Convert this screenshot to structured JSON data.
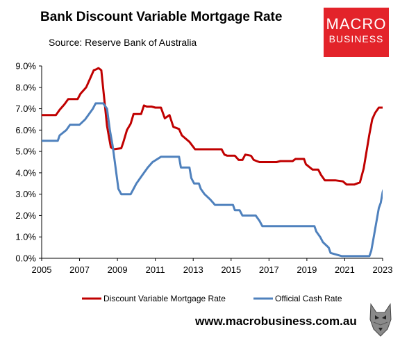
{
  "header": {
    "title": "Bank Discount Variable Mortgage Rate",
    "subtitle": "Source: Reserve Bank of Australia"
  },
  "logo": {
    "line1": "MACRO",
    "line2": "BUSINESS",
    "color": "#e3232a"
  },
  "footer": {
    "url": "www.macrobusiness.com.au",
    "icon": "wolf-icon"
  },
  "chart_data": {
    "type": "line",
    "title": "Bank Discount Variable Mortgage Rate",
    "xlim": [
      2005,
      2023
    ],
    "ylim": [
      0,
      9
    ],
    "x_ticks": [
      "2005",
      "2007",
      "2009",
      "2011",
      "2013",
      "2015",
      "2017",
      "2019",
      "2021",
      "2023"
    ],
    "x_tick_values": [
      2005,
      2007,
      2009,
      2011,
      2013,
      2015,
      2017,
      2019,
      2021,
      2023
    ],
    "y_ticks": [
      "0.0%",
      "1.0%",
      "2.0%",
      "3.0%",
      "4.0%",
      "5.0%",
      "6.0%",
      "7.0%",
      "8.0%",
      "9.0%"
    ],
    "y_tick_values": [
      0,
      1,
      2,
      3,
      4,
      5,
      6,
      7,
      8,
      9
    ],
    "grid": false,
    "legend": "bottom",
    "series": [
      {
        "name": "Discount Variable Mortgage Rate",
        "color": "#c00000",
        "points": [
          [
            2005.0,
            6.7
          ],
          [
            2005.75,
            6.7
          ],
          [
            2005.95,
            6.95
          ],
          [
            2006.2,
            7.2
          ],
          [
            2006.4,
            7.45
          ],
          [
            2006.9,
            7.45
          ],
          [
            2007.05,
            7.7
          ],
          [
            2007.35,
            8.0
          ],
          [
            2007.55,
            8.4
          ],
          [
            2007.75,
            8.8
          ],
          [
            2007.9,
            8.85
          ],
          [
            2008.0,
            8.9
          ],
          [
            2008.15,
            8.8
          ],
          [
            2008.3,
            7.5
          ],
          [
            2008.45,
            6.2
          ],
          [
            2008.55,
            5.7
          ],
          [
            2008.65,
            5.2
          ],
          [
            2008.8,
            5.1
          ],
          [
            2009.2,
            5.15
          ],
          [
            2009.3,
            5.4
          ],
          [
            2009.5,
            6.0
          ],
          [
            2009.7,
            6.3
          ],
          [
            2009.85,
            6.75
          ],
          [
            2010.25,
            6.75
          ],
          [
            2010.4,
            7.15
          ],
          [
            2010.55,
            7.1
          ],
          [
            2010.8,
            7.1
          ],
          [
            2011.0,
            7.05
          ],
          [
            2011.3,
            7.05
          ],
          [
            2011.5,
            6.55
          ],
          [
            2011.75,
            6.7
          ],
          [
            2011.95,
            6.15
          ],
          [
            2012.25,
            6.05
          ],
          [
            2012.4,
            5.75
          ],
          [
            2012.6,
            5.6
          ],
          [
            2012.8,
            5.45
          ],
          [
            2013.1,
            5.1
          ],
          [
            2014.5,
            5.1
          ],
          [
            2014.65,
            4.85
          ],
          [
            2014.8,
            4.8
          ],
          [
            2015.2,
            4.8
          ],
          [
            2015.4,
            4.6
          ],
          [
            2015.6,
            4.6
          ],
          [
            2015.75,
            4.85
          ],
          [
            2016.05,
            4.8
          ],
          [
            2016.2,
            4.6
          ],
          [
            2016.5,
            4.5
          ],
          [
            2017.4,
            4.5
          ],
          [
            2017.6,
            4.55
          ],
          [
            2018.25,
            4.55
          ],
          [
            2018.4,
            4.65
          ],
          [
            2018.85,
            4.65
          ],
          [
            2018.95,
            4.4
          ],
          [
            2019.3,
            4.15
          ],
          [
            2019.6,
            4.15
          ],
          [
            2019.75,
            3.9
          ],
          [
            2019.95,
            3.65
          ],
          [
            2020.5,
            3.65
          ],
          [
            2020.9,
            3.6
          ],
          [
            2021.1,
            3.45
          ],
          [
            2021.5,
            3.45
          ],
          [
            2021.8,
            3.55
          ],
          [
            2022.0,
            4.2
          ],
          [
            2022.15,
            5.0
          ],
          [
            2022.3,
            5.8
          ],
          [
            2022.45,
            6.5
          ],
          [
            2022.6,
            6.8
          ],
          [
            2022.8,
            7.05
          ],
          [
            2023.0,
            7.05
          ]
        ]
      },
      {
        "name": "Official Cash Rate",
        "color": "#4f81bd",
        "points": [
          [
            2005.0,
            5.5
          ],
          [
            2005.85,
            5.5
          ],
          [
            2005.95,
            5.75
          ],
          [
            2006.3,
            6.0
          ],
          [
            2006.5,
            6.25
          ],
          [
            2007.0,
            6.25
          ],
          [
            2007.3,
            6.5
          ],
          [
            2007.5,
            6.75
          ],
          [
            2007.7,
            7.0
          ],
          [
            2007.85,
            7.25
          ],
          [
            2008.25,
            7.25
          ],
          [
            2008.45,
            7.0
          ],
          [
            2008.6,
            6.0
          ],
          [
            2008.75,
            5.25
          ],
          [
            2008.9,
            4.25
          ],
          [
            2009.05,
            3.25
          ],
          [
            2009.2,
            3.0
          ],
          [
            2009.7,
            3.0
          ],
          [
            2009.85,
            3.25
          ],
          [
            2010.0,
            3.5
          ],
          [
            2010.2,
            3.75
          ],
          [
            2010.4,
            4.0
          ],
          [
            2010.6,
            4.25
          ],
          [
            2010.85,
            4.5
          ],
          [
            2011.3,
            4.75
          ],
          [
            2012.25,
            4.75
          ],
          [
            2012.35,
            4.25
          ],
          [
            2012.8,
            4.25
          ],
          [
            2012.9,
            3.75
          ],
          [
            2013.05,
            3.5
          ],
          [
            2013.3,
            3.5
          ],
          [
            2013.4,
            3.25
          ],
          [
            2013.6,
            3.0
          ],
          [
            2013.9,
            2.75
          ],
          [
            2014.15,
            2.5
          ],
          [
            2015.1,
            2.5
          ],
          [
            2015.2,
            2.25
          ],
          [
            2015.45,
            2.25
          ],
          [
            2015.6,
            2.0
          ],
          [
            2016.3,
            2.0
          ],
          [
            2016.5,
            1.75
          ],
          [
            2016.65,
            1.5
          ],
          [
            2019.4,
            1.5
          ],
          [
            2019.5,
            1.25
          ],
          [
            2019.7,
            1.0
          ],
          [
            2019.85,
            0.75
          ],
          [
            2020.15,
            0.5
          ],
          [
            2020.25,
            0.25
          ],
          [
            2020.85,
            0.1
          ],
          [
            2022.3,
            0.1
          ],
          [
            2022.4,
            0.35
          ],
          [
            2022.5,
            0.85
          ],
          [
            2022.6,
            1.35
          ],
          [
            2022.7,
            1.85
          ],
          [
            2022.8,
            2.35
          ],
          [
            2022.9,
            2.6
          ],
          [
            2023.0,
            3.1
          ],
          [
            2023.1,
            3.35
          ],
          [
            2023.2,
            3.6
          ],
          [
            2023.35,
            3.6
          ]
        ]
      }
    ]
  }
}
